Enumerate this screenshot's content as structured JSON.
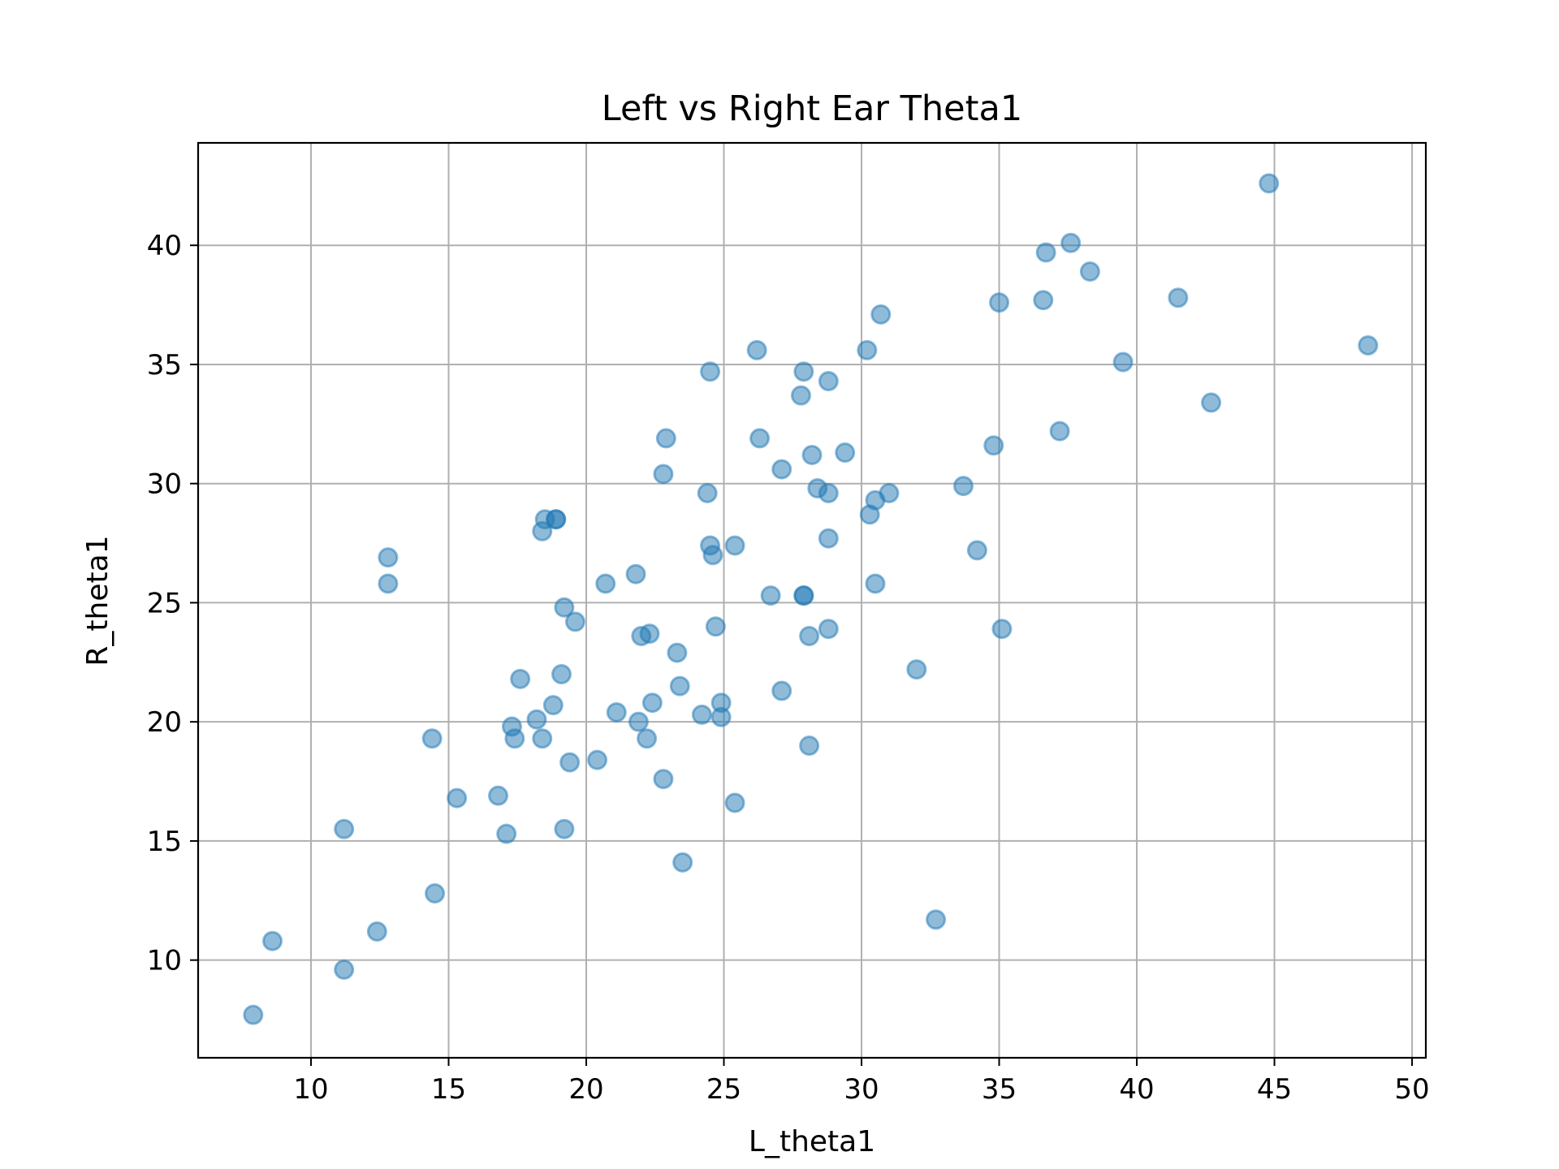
{
  "chart_data": {
    "type": "scatter",
    "title": "Left vs Right Ear Theta1",
    "xlabel": "L_theta1",
    "ylabel": "R_theta1",
    "xlim": [
      5.9,
      50.5
    ],
    "ylim": [
      5.9,
      44.3
    ],
    "xticks": [
      10,
      15,
      20,
      25,
      30,
      35,
      40,
      45,
      50
    ],
    "yticks": [
      10,
      15,
      20,
      25,
      30,
      35,
      40
    ],
    "xtick_labels": [
      "10",
      "15",
      "20",
      "25",
      "30",
      "35",
      "40",
      "45",
      "50"
    ],
    "ytick_labels": [
      "10",
      "15",
      "20",
      "25",
      "30",
      "35",
      "40"
    ],
    "grid": true,
    "marker_color": "#1f77b4",
    "marker_alpha": 0.5,
    "series": [
      {
        "points": [
          [
            7.9,
            7.7
          ],
          [
            8.6,
            10.8
          ],
          [
            11.2,
            15.5
          ],
          [
            11.2,
            9.6
          ],
          [
            12.4,
            11.2
          ],
          [
            12.8,
            26.9
          ],
          [
            12.8,
            25.8
          ],
          [
            14.4,
            19.3
          ],
          [
            14.5,
            12.8
          ],
          [
            15.3,
            16.8
          ],
          [
            16.8,
            16.9
          ],
          [
            17.1,
            15.3
          ],
          [
            17.3,
            19.8
          ],
          [
            17.4,
            19.3
          ],
          [
            17.6,
            21.8
          ],
          [
            18.2,
            20.1
          ],
          [
            18.4,
            19.3
          ],
          [
            18.5,
            28.5
          ],
          [
            18.4,
            28.0
          ],
          [
            18.8,
            20.7
          ],
          [
            18.9,
            28.5
          ],
          [
            18.9,
            28.5
          ],
          [
            19.1,
            22.0
          ],
          [
            19.2,
            24.8
          ],
          [
            19.2,
            15.5
          ],
          [
            19.4,
            18.3
          ],
          [
            19.6,
            24.2
          ],
          [
            20.4,
            18.4
          ],
          [
            20.7,
            25.8
          ],
          [
            21.1,
            20.4
          ],
          [
            21.9,
            20.0
          ],
          [
            21.8,
            26.2
          ],
          [
            22.0,
            23.6
          ],
          [
            22.3,
            23.7
          ],
          [
            22.2,
            19.3
          ],
          [
            22.4,
            20.8
          ],
          [
            22.8,
            30.4
          ],
          [
            22.9,
            31.9
          ],
          [
            22.8,
            17.6
          ],
          [
            23.3,
            22.9
          ],
          [
            23.4,
            21.5
          ],
          [
            23.5,
            14.1
          ],
          [
            24.2,
            20.3
          ],
          [
            24.4,
            29.6
          ],
          [
            24.5,
            34.7
          ],
          [
            24.5,
            27.4
          ],
          [
            24.6,
            27.0
          ],
          [
            24.7,
            24.0
          ],
          [
            24.9,
            20.8
          ],
          [
            24.9,
            20.2
          ],
          [
            25.4,
            27.4
          ],
          [
            25.4,
            16.6
          ],
          [
            26.2,
            35.6
          ],
          [
            26.3,
            31.9
          ],
          [
            26.7,
            25.3
          ],
          [
            27.1,
            30.6
          ],
          [
            27.1,
            21.3
          ],
          [
            27.8,
            33.7
          ],
          [
            27.9,
            34.7
          ],
          [
            27.9,
            25.3
          ],
          [
            27.9,
            25.3
          ],
          [
            28.1,
            23.6
          ],
          [
            28.1,
            19.0
          ],
          [
            28.2,
            31.2
          ],
          [
            28.4,
            29.8
          ],
          [
            28.8,
            34.3
          ],
          [
            28.8,
            29.6
          ],
          [
            28.8,
            27.7
          ],
          [
            28.8,
            23.9
          ],
          [
            29.4,
            31.3
          ],
          [
            30.2,
            35.6
          ],
          [
            30.3,
            28.7
          ],
          [
            30.5,
            29.3
          ],
          [
            30.5,
            25.8
          ],
          [
            30.7,
            37.1
          ],
          [
            31.0,
            29.6
          ],
          [
            32.0,
            22.2
          ],
          [
            32.7,
            11.7
          ],
          [
            33.7,
            29.9
          ],
          [
            34.2,
            27.2
          ],
          [
            34.8,
            31.6
          ],
          [
            35.0,
            37.6
          ],
          [
            35.1,
            23.9
          ],
          [
            36.6,
            37.7
          ],
          [
            36.7,
            39.7
          ],
          [
            37.2,
            32.2
          ],
          [
            37.6,
            40.1
          ],
          [
            38.3,
            38.9
          ],
          [
            39.5,
            35.1
          ],
          [
            41.5,
            37.8
          ],
          [
            42.7,
            33.4
          ],
          [
            44.8,
            42.6
          ],
          [
            48.4,
            35.8
          ]
        ]
      }
    ]
  }
}
